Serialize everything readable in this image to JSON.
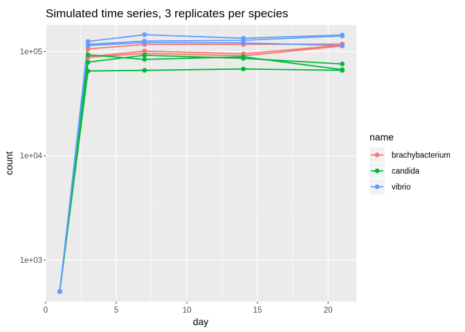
{
  "chart_data": {
    "type": "line",
    "title": "Simulated time series, 3 replicates per species",
    "xlabel": "day",
    "ylabel": "count",
    "x_scale": "linear",
    "y_scale": "log10",
    "xlim": [
      0,
      22
    ],
    "ylim": [
      400,
      180000
    ],
    "x_ticks": [
      0,
      5,
      10,
      15,
      20
    ],
    "x_tick_labels": [
      "0",
      "5",
      "10",
      "15",
      "20"
    ],
    "y_ticks": [
      1000,
      10000,
      100000
    ],
    "y_tick_labels": [
      "1e+03",
      "1e+04",
      "1e+05"
    ],
    "grid": true,
    "legend": {
      "title": "name",
      "position": "right"
    },
    "colors": {
      "panel_bg": "#EBEBEB",
      "grid": "#FFFFFF"
    },
    "series": [
      {
        "name": "brachybacterium",
        "color": "#F8766D",
        "x": [
          1,
          3,
          7,
          14,
          21
        ],
        "y": [
          500,
          88000,
          96000,
          91000,
          113000
        ]
      },
      {
        "name": "brachybacterium",
        "color": "#F8766D",
        "x": [
          1,
          3,
          7,
          14,
          21
        ],
        "y": [
          500,
          106000,
          117000,
          117000,
          118000
        ]
      },
      {
        "name": "brachybacterium",
        "color": "#F8766D",
        "x": [
          1,
          3,
          7,
          14,
          21
        ],
        "y": [
          500,
          89000,
          101000,
          95000,
          115000
        ]
      },
      {
        "name": "candida",
        "color": "#00BA38",
        "x": [
          1,
          3,
          7,
          14,
          21
        ],
        "y": [
          500,
          65000,
          66000,
          68000,
          66000
        ]
      },
      {
        "name": "candida",
        "color": "#00BA38",
        "x": [
          1,
          3,
          7,
          14,
          21
        ],
        "y": [
          500,
          79000,
          92000,
          86000,
          76000
        ]
      },
      {
        "name": "candida",
        "color": "#00BA38",
        "x": [
          1,
          3,
          7,
          14,
          21
        ],
        "y": [
          500,
          93000,
          84000,
          89000,
          67000
        ]
      },
      {
        "name": "vibrio",
        "color": "#619CFF",
        "x": [
          1,
          3,
          7,
          14,
          21
        ],
        "y": [
          500,
          125000,
          145000,
          134000,
          144000
        ]
      },
      {
        "name": "vibrio",
        "color": "#619CFF",
        "x": [
          1,
          3,
          7,
          14,
          21
        ],
        "y": [
          500,
          117000,
          126000,
          128000,
          141000
        ]
      },
      {
        "name": "vibrio",
        "color": "#619CFF",
        "x": [
          1,
          3,
          7,
          14,
          21
        ],
        "y": [
          500,
          114000,
          122000,
          121000,
          114000
        ]
      }
    ]
  }
}
